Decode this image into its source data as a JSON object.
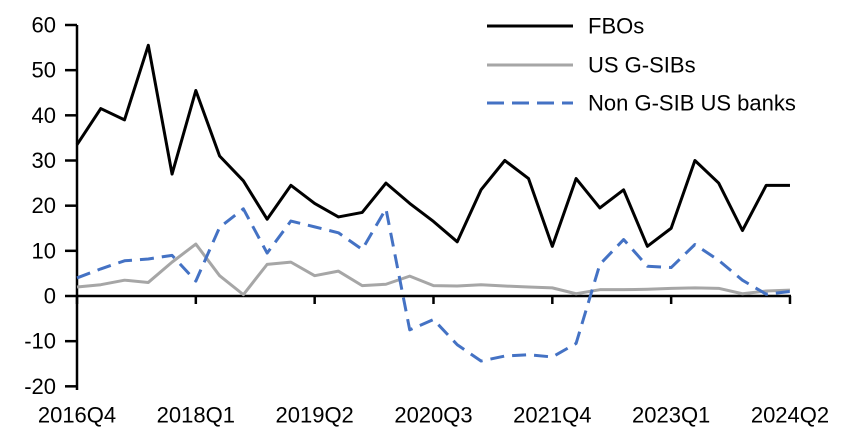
{
  "chart_data": {
    "type": "line",
    "title": "",
    "xlabel": "",
    "ylabel": "",
    "grid": false,
    "legend_position": "top-right",
    "ylim": [
      -20,
      60
    ],
    "y_ticks": [
      60,
      50,
      40,
      30,
      20,
      10,
      0,
      -10,
      -20
    ],
    "x_tick_labels": [
      "2016Q4",
      "2018Q1",
      "2019Q2",
      "2020Q3",
      "2021Q4",
      "2023Q1",
      "2024Q2"
    ],
    "x_tick_indices": [
      0,
      5,
      10,
      15,
      20,
      25,
      30
    ],
    "categories": [
      "2016Q4",
      "2017Q1",
      "2017Q2",
      "2017Q3",
      "2017Q4",
      "2018Q1",
      "2018Q2",
      "2018Q3",
      "2018Q4",
      "2019Q1",
      "2019Q2",
      "2019Q3",
      "2019Q4",
      "2020Q1",
      "2020Q2",
      "2020Q3",
      "2020Q4",
      "2021Q1",
      "2021Q2",
      "2021Q3",
      "2021Q4",
      "2022Q1",
      "2022Q2",
      "2022Q3",
      "2022Q4",
      "2023Q1",
      "2023Q2",
      "2023Q3",
      "2023Q4",
      "2024Q1",
      "2024Q2"
    ],
    "series": [
      {
        "name": "FBOs",
        "color": "#000000",
        "line_style": "solid",
        "values": [
          33.5,
          41.5,
          39,
          55.5,
          27,
          45.5,
          31,
          25.5,
          17,
          24.5,
          20.5,
          17.5,
          18.5,
          25,
          20.5,
          16.5,
          12,
          23.5,
          30,
          26,
          11,
          26,
          19.5,
          23.5,
          11,
          15,
          30,
          25,
          14.5,
          24.5,
          24.5
        ]
      },
      {
        "name": "US G-SIBs",
        "color": "#a6a6a6",
        "line_style": "solid",
        "values": [
          2,
          2.5,
          3.5,
          3,
          7.5,
          11.5,
          4.5,
          0.3,
          7,
          7.5,
          4.5,
          5.5,
          2.3,
          2.6,
          4.4,
          2.3,
          2.2,
          2.5,
          2.2,
          2,
          1.8,
          0.5,
          1.4,
          1.4,
          1.5,
          1.7,
          1.8,
          1.7,
          0.5,
          1.1,
          1.3
        ]
      },
      {
        "name": "Non G-SIB US banks",
        "color": "#4472c4",
        "line_style": "dashed",
        "values": [
          4,
          6,
          7.8,
          8.2,
          9,
          3.3,
          15.2,
          19.3,
          9.5,
          16.6,
          15.3,
          14,
          10.3,
          19.3,
          -7.5,
          -5.2,
          -10.8,
          -14.4,
          -13.3,
          -13,
          -13.5,
          -10.5,
          7,
          12.5,
          6.6,
          6.3,
          11.4,
          7.9,
          3.5,
          0.4,
          1
        ]
      }
    ],
    "axis_color": "#000000"
  }
}
